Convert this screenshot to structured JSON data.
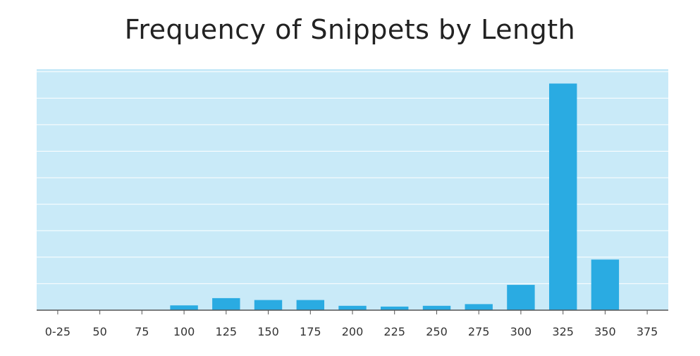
{
  "chart_data": {
    "type": "bar",
    "title": "Frequency of Snippets by Length",
    "xlabel": "",
    "ylabel": "",
    "x_tick_labels": [
      "0-25",
      "50",
      "75",
      "100",
      "125",
      "150",
      "175",
      "200",
      "225",
      "250",
      "275",
      "300",
      "325",
      "350",
      "375"
    ],
    "categories": [
      "100",
      "125",
      "150",
      "175",
      "200",
      "225",
      "250",
      "275",
      "300",
      "325",
      "350"
    ],
    "values": [
      0.2,
      0.5,
      0.42,
      0.42,
      0.18,
      0.15,
      0.18,
      0.25,
      1.05,
      9.4,
      2.1
    ],
    "ylim": [
      0,
      10
    ],
    "y_gridlines": 9,
    "y_axis_labels_shown": false,
    "grid": true,
    "legend": "none",
    "colors": {
      "bar": "#2aabe2",
      "plot_background": "#c9eaf8",
      "gridline": "#ffffff",
      "axis": "#555555",
      "text": "#222222"
    }
  }
}
